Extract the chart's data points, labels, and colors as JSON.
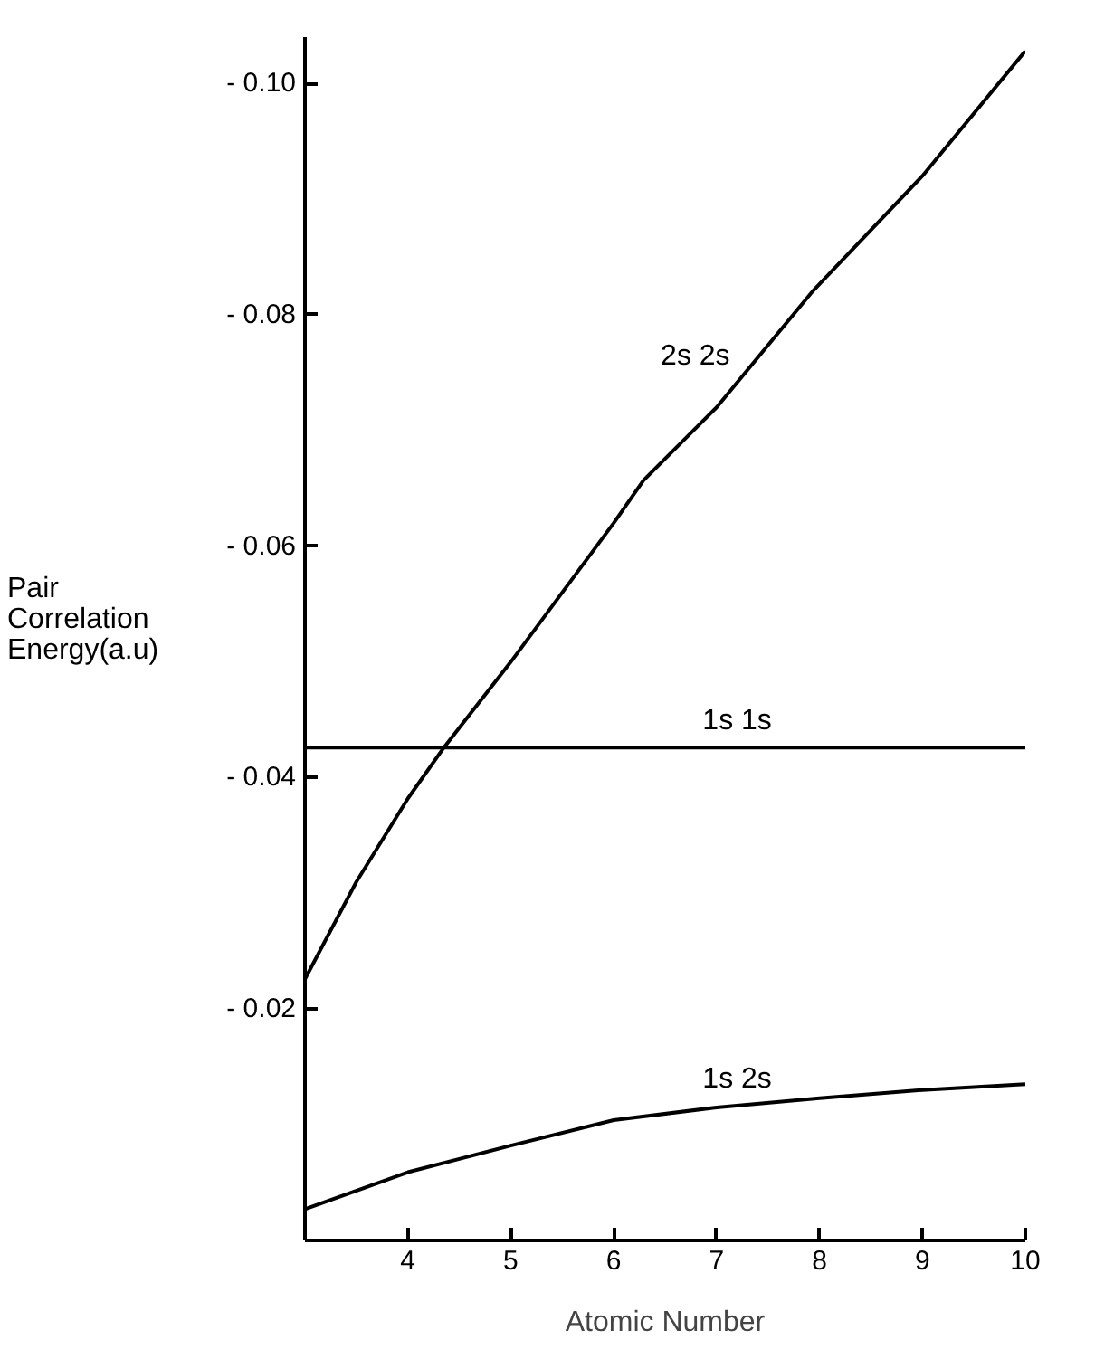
{
  "chart_data": {
    "type": "line",
    "xlabel": "Atomic Number",
    "ylabel": "Pair Correlation Energy(a.u)",
    "xlim": [
      3,
      10
    ],
    "xticks": [
      4,
      5,
      6,
      7,
      8,
      9,
      10
    ],
    "ylim": [
      0,
      -0.104
    ],
    "yticks": [
      {
        "value": -0.02,
        "label": "- 0.02"
      },
      {
        "value": -0.04,
        "label": "- 0.04"
      },
      {
        "value": -0.06,
        "label": "- 0.06"
      },
      {
        "value": -0.08,
        "label": "- 0.08"
      },
      {
        "value": -0.1,
        "label": "- 0.10"
      }
    ],
    "grid": false,
    "legend": false,
    "marker": "none",
    "line_style": "solid",
    "series": [
      {
        "name": "2s 2s",
        "color": "#000000",
        "x": [
          3,
          3.5,
          4,
          4.35,
          4.71,
          5,
          6,
          6.29,
          7,
          7.94,
          9,
          10
        ],
        "values": [
          -0.0226,
          -0.031,
          -0.0382,
          -0.0426,
          -0.0467,
          -0.05,
          -0.062,
          -0.0657,
          -0.072,
          -0.0821,
          -0.092,
          -0.1028
        ]
      },
      {
        "name": "1s 1s",
        "color": "#000000",
        "x": [
          3,
          10
        ],
        "values": [
          -0.0426,
          -0.0426
        ]
      },
      {
        "name": "1s 2s",
        "color": "#000000",
        "x": [
          3,
          4,
          5,
          6,
          7,
          8,
          9,
          10
        ],
        "values": [
          -0.0027,
          -0.0059,
          -0.0082,
          -0.0104,
          -0.0115,
          -0.0123,
          -0.013,
          -0.0135
        ]
      }
    ]
  }
}
